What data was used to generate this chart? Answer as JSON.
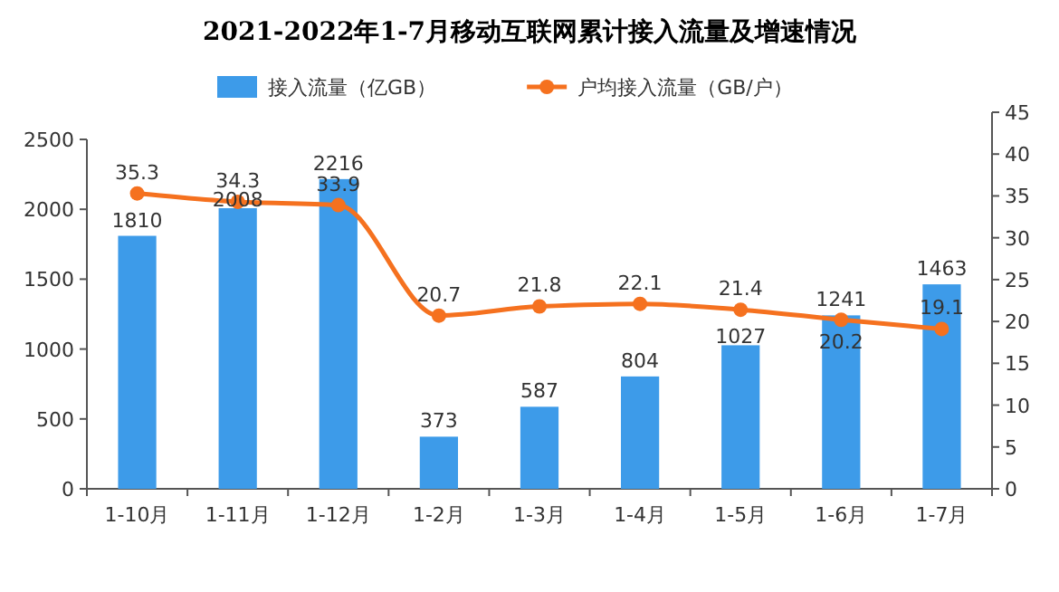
{
  "chart_data": {
    "type": "bar",
    "title": "2021-2022年1-7月移动互联网累计接入流量及增速情况",
    "categories": [
      "1-10月",
      "1-11月",
      "1-12月",
      "1-2月",
      "1-3月",
      "1-4月",
      "1-5月",
      "1-6月",
      "1-7月"
    ],
    "series": [
      {
        "name": "接入流量（亿GB）",
        "color": "#3d9be9",
        "values": [
          1810,
          2008,
          2216,
          373,
          587,
          804,
          1027,
          1241,
          1463
        ]
      },
      {
        "name": "户均接入流量（GB/户）",
        "type": "line",
        "axis": "y2",
        "color": "#f5711f",
        "values": [
          35.3,
          34.3,
          33.9,
          20.7,
          21.8,
          22.1,
          21.4,
          20.2,
          19.1
        ]
      }
    ],
    "ylim": [
      0,
      2500
    ],
    "yticks": [
      0,
      500,
      1000,
      1500,
      2000,
      2500
    ],
    "y2lim": [
      0,
      45
    ],
    "y2ticks": [
      0,
      5,
      10,
      15,
      20,
      25,
      30,
      35,
      40,
      45
    ],
    "data_labels": true,
    "legend": "top",
    "marker": "circle",
    "grid": false
  }
}
